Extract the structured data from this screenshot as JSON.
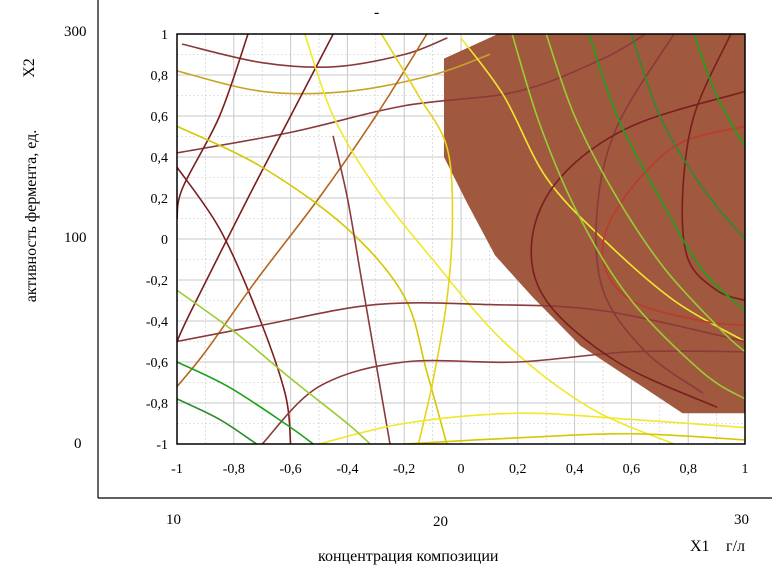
{
  "chart_data": {
    "type": "contour",
    "title": "",
    "top_mark": "-",
    "ylabel": "активность фермента, ед.",
    "ylabel_var": "X2",
    "xlabel": "концентрация композиции",
    "xlabel_var": "X1",
    "xlabel_unit": "г/л",
    "x_coded_ticks": [
      "-1",
      "-0,8",
      "-0,6",
      "-0,4",
      "-0,2",
      "0",
      "0,2",
      "0,4",
      "0,6",
      "0,8",
      "1"
    ],
    "y_coded_ticks": [
      "1",
      "0,8",
      "0,6",
      "0,4",
      "0,2",
      "0",
      "-0,2",
      "-0,4",
      "-0,6",
      "-0,8",
      "-1"
    ],
    "x_natural_ticks": [
      "10",
      "20",
      "30"
    ],
    "y_natural_ticks": [
      "300",
      "100",
      "0"
    ],
    "xlim": [
      -1,
      1
    ],
    "ylim": [
      -1,
      1
    ],
    "grid": true,
    "colors": {
      "region_fill": "#a0583f",
      "grid": "#c8c8c8",
      "line_palette": [
        "#7a1e1e",
        "#8b3a3a",
        "#c0392b",
        "#b5651d",
        "#d4c800",
        "#f0e82a",
        "#9acd32",
        "#2e8b2e",
        "#1aa31a",
        "#c9a227"
      ]
    },
    "optimal_region": {
      "label": "",
      "color": "#a0583f",
      "boundary": [
        [
          -0.06,
          0.88
        ],
        [
          0.13,
          1.0
        ],
        [
          1.0,
          1.0
        ],
        [
          1.0,
          -0.85
        ],
        [
          0.78,
          -0.85
        ],
        [
          0.42,
          -0.52
        ],
        [
          0.25,
          -0.28
        ],
        [
          0.12,
          -0.08
        ],
        [
          0.02,
          0.18
        ],
        [
          -0.06,
          0.4
        ]
      ]
    },
    "series": [
      {
        "color": "#c9a227",
        "points": [
          [
            -1,
            0.82
          ],
          [
            -0.7,
            0.72
          ],
          [
            -0.4,
            0.72
          ],
          [
            -0.1,
            0.8
          ],
          [
            0.1,
            0.9
          ]
        ]
      },
      {
        "color": "#8b3a3a",
        "points": [
          [
            -0.98,
            0.95
          ],
          [
            -0.7,
            0.86
          ],
          [
            -0.45,
            0.84
          ],
          [
            -0.2,
            0.9
          ],
          [
            -0.05,
            0.98
          ]
        ]
      },
      {
        "color": "#8b3a3a",
        "points": [
          [
            -1,
            0.42
          ],
          [
            -0.6,
            0.52
          ],
          [
            -0.2,
            0.65
          ],
          [
            0.2,
            0.72
          ],
          [
            0.5,
            0.88
          ],
          [
            0.65,
            1.0
          ]
        ]
      },
      {
        "color": "#7a1e1e",
        "points": [
          [
            -0.75,
            1.0
          ],
          [
            -0.85,
            0.6
          ],
          [
            -0.98,
            0.25
          ],
          [
            -1,
            0.1
          ]
        ]
      },
      {
        "color": "#7a1e1e",
        "points": [
          [
            -0.45,
            1.0
          ],
          [
            -0.6,
            0.6
          ],
          [
            -0.75,
            0.2
          ],
          [
            -0.95,
            -0.35
          ],
          [
            -1,
            -0.5
          ]
        ]
      },
      {
        "color": "#7a1e1e",
        "points": [
          [
            -1,
            0.35
          ],
          [
            -0.85,
            0.05
          ],
          [
            -0.72,
            -0.35
          ],
          [
            -0.62,
            -0.75
          ],
          [
            -0.6,
            -1
          ]
        ]
      },
      {
        "color": "#b5651d",
        "points": [
          [
            -0.12,
            1.0
          ],
          [
            -0.3,
            0.6
          ],
          [
            -0.5,
            0.2
          ],
          [
            -0.72,
            -0.2
          ],
          [
            -0.9,
            -0.55
          ],
          [
            -1,
            -0.72
          ]
        ]
      },
      {
        "color": "#f0e82a",
        "points": [
          [
            -0.55,
            1.0
          ],
          [
            -0.45,
            0.6
          ],
          [
            -0.3,
            0.25
          ],
          [
            -0.1,
            -0.1
          ],
          [
            0.15,
            -0.5
          ],
          [
            0.45,
            -0.82
          ],
          [
            0.75,
            -1
          ]
        ]
      },
      {
        "color": "#d4c800",
        "points": [
          [
            -1,
            0.55
          ],
          [
            -0.7,
            0.35
          ],
          [
            -0.4,
            0.05
          ],
          [
            -0.2,
            -0.28
          ],
          [
            -0.12,
            -0.65
          ],
          [
            -0.05,
            -1
          ]
        ]
      },
      {
        "color": "#e6d21a",
        "points": [
          [
            -0.28,
            1.0
          ],
          [
            -0.15,
            0.7
          ],
          [
            -0.05,
            0.45
          ],
          [
            -0.03,
            0.1
          ],
          [
            -0.05,
            -0.3
          ],
          [
            -0.1,
            -0.7
          ],
          [
            -0.15,
            -1
          ]
        ]
      },
      {
        "color": "#f0e82a",
        "points": [
          [
            0.0,
            0.98
          ],
          [
            0.15,
            0.7
          ],
          [
            0.3,
            0.3
          ],
          [
            0.5,
            0.0
          ],
          [
            0.75,
            -0.3
          ],
          [
            1.0,
            -0.5
          ]
        ]
      },
      {
        "color": "#8b3a3a",
        "points": [
          [
            -0.25,
            -1
          ],
          [
            -0.3,
            -0.6
          ],
          [
            -0.35,
            -0.2
          ],
          [
            -0.4,
            0.2
          ],
          [
            -0.45,
            0.5
          ]
        ]
      },
      {
        "color": "#8b3a3a",
        "points": [
          [
            -0.7,
            -1
          ],
          [
            -0.5,
            -0.72
          ],
          [
            -0.2,
            -0.6
          ],
          [
            0.2,
            -0.6
          ],
          [
            0.6,
            -0.55
          ],
          [
            1.0,
            -0.55
          ]
        ]
      },
      {
        "color": "#8b3a3a",
        "points": [
          [
            -1,
            -0.5
          ],
          [
            -0.7,
            -0.42
          ],
          [
            -0.3,
            -0.32
          ],
          [
            0.1,
            -0.32
          ],
          [
            0.5,
            -0.35
          ],
          [
            1.0,
            -0.5
          ]
        ]
      },
      {
        "color": "#f0e82a",
        "points": [
          [
            -0.5,
            -1
          ],
          [
            -0.2,
            -0.9
          ],
          [
            0.2,
            -0.85
          ],
          [
            0.6,
            -0.88
          ],
          [
            1.0,
            -0.92
          ]
        ]
      },
      {
        "color": "#d4c800",
        "points": [
          [
            -0.2,
            -1
          ],
          [
            0.2,
            -0.97
          ],
          [
            0.6,
            -0.95
          ],
          [
            1.0,
            -0.98
          ]
        ]
      },
      {
        "color": "#2e8b2e",
        "points": [
          [
            -1,
            -0.78
          ],
          [
            -0.85,
            -0.88
          ],
          [
            -0.72,
            -1
          ]
        ]
      },
      {
        "color": "#1aa31a",
        "points": [
          [
            -1,
            -0.6
          ],
          [
            -0.82,
            -0.72
          ],
          [
            -0.62,
            -0.9
          ],
          [
            -0.52,
            -1
          ]
        ]
      },
      {
        "color": "#9acd32",
        "points": [
          [
            -1,
            -0.25
          ],
          [
            -0.8,
            -0.45
          ],
          [
            -0.6,
            -0.68
          ],
          [
            -0.4,
            -0.9
          ],
          [
            -0.32,
            -1
          ]
        ]
      },
      {
        "color": "#c0392b",
        "points": [
          [
            1.0,
            0.55
          ],
          [
            0.75,
            0.45
          ],
          [
            0.55,
            0.15
          ],
          [
            0.5,
            -0.1
          ],
          [
            0.6,
            -0.3
          ],
          [
            0.85,
            -0.4
          ],
          [
            1.0,
            -0.42
          ]
        ]
      },
      {
        "color": "#7a1e1e",
        "points": [
          [
            0.95,
            1.0
          ],
          [
            0.82,
            0.6
          ],
          [
            0.78,
            0.2
          ],
          [
            0.8,
            -0.1
          ],
          [
            0.9,
            -0.25
          ],
          [
            1.0,
            -0.3
          ]
        ]
      },
      {
        "color": "#8b3a3a",
        "points": [
          [
            0.75,
            1.0
          ],
          [
            0.55,
            0.55
          ],
          [
            0.48,
            0.15
          ],
          [
            0.5,
            -0.25
          ],
          [
            0.65,
            -0.55
          ],
          [
            0.85,
            -0.75
          ]
        ]
      },
      {
        "color": "#7a1e1e",
        "points": [
          [
            1.0,
            0.72
          ],
          [
            0.6,
            0.55
          ],
          [
            0.35,
            0.3
          ],
          [
            0.25,
            0.0
          ],
          [
            0.3,
            -0.3
          ],
          [
            0.55,
            -0.6
          ],
          [
            0.9,
            -0.82
          ]
        ]
      },
      {
        "color": "#1aa31a",
        "points": [
          [
            0.45,
            1.0
          ],
          [
            0.55,
            0.6
          ],
          [
            0.7,
            0.2
          ],
          [
            0.85,
            -0.15
          ],
          [
            1.0,
            -0.35
          ]
        ]
      },
      {
        "color": "#2e8b2e",
        "points": [
          [
            0.6,
            1.0
          ],
          [
            0.7,
            0.6
          ],
          [
            0.85,
            0.25
          ],
          [
            1.0,
            0.0
          ]
        ]
      },
      {
        "color": "#9acd32",
        "points": [
          [
            0.3,
            1.0
          ],
          [
            0.4,
            0.6
          ],
          [
            0.55,
            0.2
          ],
          [
            0.72,
            -0.15
          ],
          [
            0.92,
            -0.45
          ],
          [
            1.0,
            -0.55
          ]
        ]
      },
      {
        "color": "#1aa31a",
        "points": [
          [
            0.82,
            1.0
          ],
          [
            0.9,
            0.7
          ],
          [
            1.0,
            0.45
          ]
        ]
      },
      {
        "color": "#9acd32",
        "points": [
          [
            0.18,
            1.0
          ],
          [
            0.28,
            0.55
          ],
          [
            0.42,
            0.1
          ],
          [
            0.6,
            -0.3
          ],
          [
            0.85,
            -0.65
          ],
          [
            1.0,
            -0.78
          ]
        ]
      }
    ]
  }
}
